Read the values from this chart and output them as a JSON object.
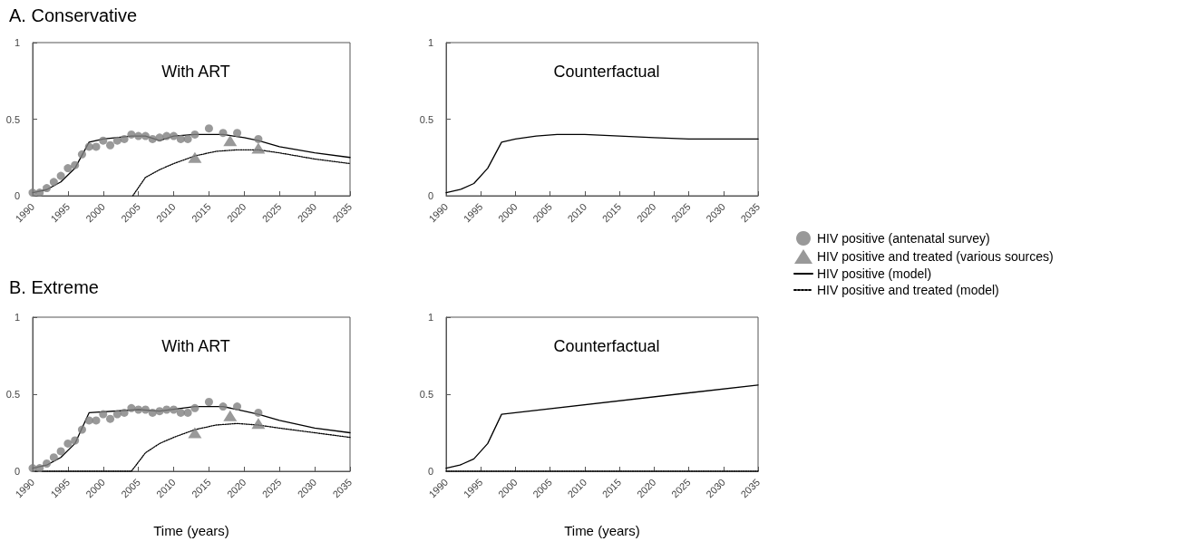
{
  "chart_data": [
    {
      "type": "line",
      "title": "A. Conservative",
      "subtitle": "With ART",
      "xlim": [
        1990,
        2035
      ],
      "xticks": [
        1990,
        1995,
        2000,
        2005,
        2010,
        2015,
        2020,
        2025,
        2030,
        2035
      ],
      "ylim": [
        0,
        1
      ],
      "yticks": [
        0,
        0.5,
        1
      ],
      "grid": false,
      "legend": "right",
      "series": [
        {
          "name": "HIV positive (antenatal survey)",
          "type": "scatter",
          "marker": "circle",
          "color": "#808080",
          "x": [
            1990,
            1991,
            1992,
            1993,
            1994,
            1995,
            1996,
            1997,
            1998,
            1999,
            2000,
            2001,
            2002,
            2003,
            2004,
            2005,
            2006,
            2007,
            2008,
            2009,
            2010,
            2011,
            2012,
            2013,
            2015,
            2017,
            2019,
            2022
          ],
          "values": [
            0.02,
            0.02,
            0.05,
            0.09,
            0.13,
            0.18,
            0.2,
            0.27,
            0.32,
            0.32,
            0.36,
            0.33,
            0.36,
            0.37,
            0.4,
            0.39,
            0.39,
            0.37,
            0.38,
            0.39,
            0.39,
            0.37,
            0.37,
            0.4,
            0.44,
            0.41,
            0.41,
            0.37
          ]
        },
        {
          "name": "HIV positive and treated (various sources)",
          "type": "scatter",
          "marker": "triangle",
          "color": "#808080",
          "x": [
            2013,
            2018,
            2022
          ],
          "values": [
            0.25,
            0.36,
            0.31
          ]
        },
        {
          "name": "HIV positive (model)",
          "type": "line",
          "line_style": "solid",
          "color": "#000000",
          "x": [
            1990,
            1992,
            1994,
            1996,
            1998,
            2000,
            2004,
            2006,
            2008,
            2010,
            2013,
            2017,
            2020,
            2022,
            2025,
            2030,
            2035
          ],
          "values": [
            0.02,
            0.04,
            0.09,
            0.18,
            0.35,
            0.37,
            0.39,
            0.39,
            0.36,
            0.39,
            0.4,
            0.4,
            0.38,
            0.36,
            0.32,
            0.28,
            0.25
          ]
        },
        {
          "name": "HIV positive and treated (model)",
          "type": "line",
          "line_style": "dotted",
          "color": "#000000",
          "x": [
            2004.2,
            2006,
            2008,
            2010,
            2013,
            2016,
            2019,
            2022,
            2025,
            2030,
            2035
          ],
          "values": [
            0,
            0.12,
            0.17,
            0.21,
            0.26,
            0.29,
            0.3,
            0.3,
            0.28,
            0.24,
            0.21
          ]
        }
      ]
    },
    {
      "type": "line",
      "subtitle": "Counterfactual",
      "xlim": [
        1990,
        2035
      ],
      "xticks": [
        1990,
        1995,
        2000,
        2005,
        2010,
        2015,
        2020,
        2025,
        2030,
        2035
      ],
      "ylim": [
        0,
        1
      ],
      "yticks": [
        0,
        0.5,
        1
      ],
      "grid": false,
      "series": [
        {
          "type": "line",
          "line_style": "solid",
          "color": "#000000",
          "x": [
            1990,
            1992,
            1994,
            1996,
            1998,
            2000,
            2003,
            2006,
            2010,
            2015,
            2020,
            2025,
            2035
          ],
          "values": [
            0.02,
            0.04,
            0.08,
            0.18,
            0.35,
            0.37,
            0.39,
            0.4,
            0.4,
            0.39,
            0.38,
            0.37,
            0.37
          ]
        }
      ]
    },
    {
      "type": "line",
      "title": "B. Extreme",
      "subtitle": "With ART",
      "xlabel": "Time (years)",
      "xlim": [
        1990,
        2035
      ],
      "xticks": [
        1990,
        1995,
        2000,
        2005,
        2010,
        2015,
        2020,
        2025,
        2030,
        2035
      ],
      "ylim": [
        0,
        1
      ],
      "yticks": [
        0,
        0.5,
        1
      ],
      "grid": false,
      "series": [
        {
          "type": "scatter",
          "marker": "circle",
          "color": "#808080",
          "x": [
            1990,
            1991,
            1992,
            1993,
            1994,
            1995,
            1996,
            1997,
            1998,
            1999,
            2000,
            2001,
            2002,
            2003,
            2004,
            2005,
            2006,
            2007,
            2008,
            2009,
            2010,
            2011,
            2012,
            2013,
            2015,
            2017,
            2019,
            2022
          ],
          "values": [
            0.02,
            0.02,
            0.05,
            0.09,
            0.13,
            0.18,
            0.2,
            0.27,
            0.33,
            0.33,
            0.37,
            0.34,
            0.37,
            0.38,
            0.41,
            0.4,
            0.4,
            0.38,
            0.39,
            0.4,
            0.4,
            0.38,
            0.38,
            0.41,
            0.45,
            0.42,
            0.42,
            0.38
          ]
        },
        {
          "type": "scatter",
          "marker": "triangle",
          "color": "#808080",
          "x": [
            2013,
            2018,
            2022
          ],
          "values": [
            0.25,
            0.36,
            0.31
          ]
        },
        {
          "type": "line",
          "line_style": "solid",
          "color": "#000000",
          "x": [
            1990,
            1992,
            1994,
            1996,
            1998,
            2005,
            2008,
            2013,
            2017,
            2020,
            2022,
            2025,
            2030,
            2035
          ],
          "values": [
            0.02,
            0.04,
            0.09,
            0.18,
            0.38,
            0.4,
            0.39,
            0.42,
            0.42,
            0.39,
            0.37,
            0.33,
            0.28,
            0.25
          ]
        },
        {
          "type": "line",
          "line_style": "dotted",
          "color": "#000000",
          "x": [
            1990,
            2004,
            2006,
            2008,
            2010,
            2013,
            2016,
            2019,
            2022,
            2025,
            2030,
            2035
          ],
          "values": [
            0,
            0,
            0.12,
            0.18,
            0.22,
            0.27,
            0.3,
            0.31,
            0.3,
            0.28,
            0.25,
            0.22
          ]
        }
      ]
    },
    {
      "type": "line",
      "subtitle": "Counterfactual",
      "xlabel": "Time (years)",
      "xlim": [
        1990,
        2035
      ],
      "xticks": [
        1990,
        1995,
        2000,
        2005,
        2010,
        2015,
        2020,
        2025,
        2030,
        2035
      ],
      "ylim": [
        0,
        1
      ],
      "yticks": [
        0,
        0.5,
        1
      ],
      "grid": false,
      "series": [
        {
          "type": "line",
          "line_style": "solid",
          "color": "#000000",
          "x": [
            1990,
            1992,
            1994,
            1996,
            1998,
            2035
          ],
          "values": [
            0.02,
            0.04,
            0.08,
            0.18,
            0.37,
            0.56
          ]
        },
        {
          "type": "line",
          "line_style": "dotted",
          "color": "#000000",
          "x": [
            1990,
            2035
          ],
          "values": [
            0,
            0
          ]
        }
      ]
    }
  ]
}
